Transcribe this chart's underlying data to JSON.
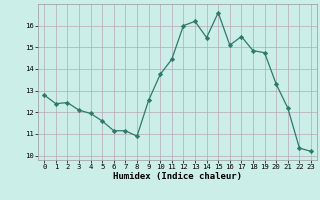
{
  "x": [
    0,
    1,
    2,
    3,
    4,
    5,
    6,
    7,
    8,
    9,
    10,
    11,
    12,
    13,
    14,
    15,
    16,
    17,
    18,
    19,
    20,
    21,
    22,
    23
  ],
  "y": [
    12.8,
    12.4,
    12.45,
    12.1,
    11.95,
    11.6,
    11.15,
    11.15,
    10.9,
    12.55,
    13.75,
    14.45,
    16.0,
    16.2,
    15.45,
    16.6,
    15.1,
    15.5,
    14.85,
    14.75,
    13.3,
    12.2,
    10.35,
    10.2
  ],
  "xlim": [
    -0.5,
    23.5
  ],
  "ylim": [
    9.8,
    17.0
  ],
  "yticks": [
    10,
    11,
    12,
    13,
    14,
    15,
    16
  ],
  "xticks": [
    0,
    1,
    2,
    3,
    4,
    5,
    6,
    7,
    8,
    9,
    10,
    11,
    12,
    13,
    14,
    15,
    16,
    17,
    18,
    19,
    20,
    21,
    22,
    23
  ],
  "xlabel": "Humidex (Indice chaleur)",
  "line_color": "#2d7a6a",
  "marker": "D",
  "marker_size": 2.2,
  "bg_color": "#cceee8",
  "grid_color": "#b8a8b8",
  "xlabel_fontsize": 6.5,
  "tick_fontsize": 5.2
}
